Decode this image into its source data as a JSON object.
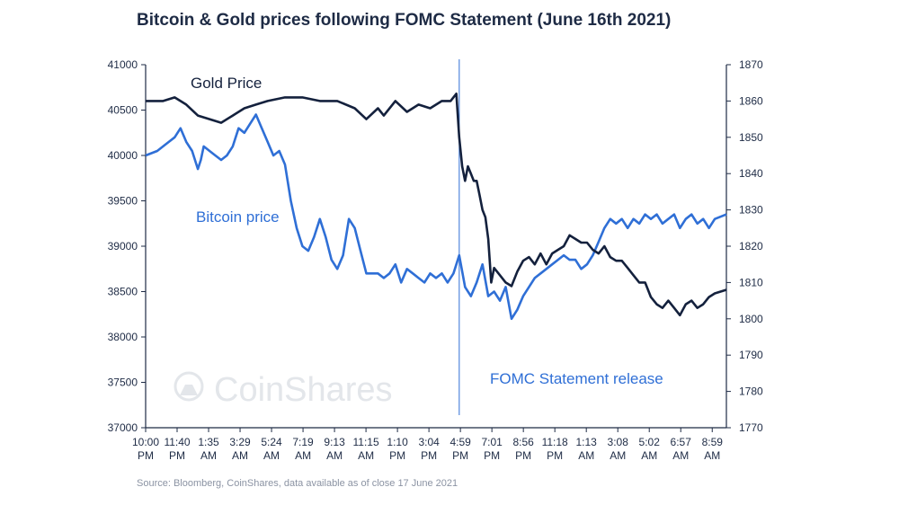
{
  "chart_data": {
    "type": "line",
    "title": "Bitcoin & Gold prices following FOMC Statement (June 16th 2021)",
    "source": "Source: Bloomberg, CoinShares, data available as of close 17 June 2021",
    "watermark": "CoinShares",
    "x_tick_labels": [
      [
        "10:00",
        "PM"
      ],
      [
        "11:40",
        "PM"
      ],
      [
        "1:35",
        "AM"
      ],
      [
        "3:29",
        "AM"
      ],
      [
        "5:24",
        "AM"
      ],
      [
        "7:19",
        "AM"
      ],
      [
        "9:13",
        "AM"
      ],
      [
        "11:15",
        "AM"
      ],
      [
        "1:10",
        "PM"
      ],
      [
        "3:04",
        "PM"
      ],
      [
        "4:59",
        "PM"
      ],
      [
        "7:01",
        "PM"
      ],
      [
        "8:56",
        "PM"
      ],
      [
        "11:18",
        "PM"
      ],
      [
        "1:13",
        "AM"
      ],
      [
        "3:08",
        "AM"
      ],
      [
        "5:02",
        "AM"
      ],
      [
        "6:57",
        "AM"
      ],
      [
        "8:59",
        "AM"
      ]
    ],
    "y_left": {
      "ticks": [
        "37000",
        "37500",
        "38000",
        "38500",
        "39000",
        "39500",
        "40000",
        "40500",
        "41000"
      ],
      "ylim": [
        37000,
        41000
      ]
    },
    "y_right": {
      "ticks": [
        "1770",
        "1780",
        "1790",
        "1800",
        "1810",
        "1820",
        "1830",
        "1840",
        "1850",
        "1860",
        "1870"
      ],
      "ylim": [
        1770,
        1870
      ]
    },
    "annotation": {
      "label": "FOMC Statement release",
      "x_index": 0.54
    },
    "colors": {
      "bitcoin": "#2f6fd6",
      "gold": "#14213d",
      "axis": "#1e2b45",
      "annotation": "#2f6fd6",
      "watermark": "#e3e6ea"
    },
    "series": [
      {
        "name": "Gold Price",
        "axis": "right",
        "points": [
          [
            0.0,
            1860
          ],
          [
            0.03,
            1860
          ],
          [
            0.05,
            1861
          ],
          [
            0.07,
            1859
          ],
          [
            0.09,
            1856
          ],
          [
            0.11,
            1855
          ],
          [
            0.13,
            1854
          ],
          [
            0.15,
            1856
          ],
          [
            0.17,
            1858
          ],
          [
            0.19,
            1859
          ],
          [
            0.21,
            1860
          ],
          [
            0.24,
            1861
          ],
          [
            0.27,
            1861
          ],
          [
            0.3,
            1860
          ],
          [
            0.33,
            1860
          ],
          [
            0.36,
            1858
          ],
          [
            0.38,
            1855
          ],
          [
            0.4,
            1858
          ],
          [
            0.41,
            1856
          ],
          [
            0.43,
            1860
          ],
          [
            0.45,
            1857
          ],
          [
            0.47,
            1859
          ],
          [
            0.49,
            1858
          ],
          [
            0.51,
            1860
          ],
          [
            0.525,
            1860
          ],
          [
            0.535,
            1862
          ],
          [
            0.54,
            1850
          ],
          [
            0.545,
            1842
          ],
          [
            0.55,
            1838
          ],
          [
            0.555,
            1842
          ],
          [
            0.56,
            1840
          ],
          [
            0.565,
            1838
          ],
          [
            0.57,
            1838
          ],
          [
            0.575,
            1834
          ],
          [
            0.58,
            1830
          ],
          [
            0.585,
            1828
          ],
          [
            0.59,
            1822
          ],
          [
            0.595,
            1810
          ],
          [
            0.6,
            1814
          ],
          [
            0.61,
            1812
          ],
          [
            0.62,
            1810
          ],
          [
            0.63,
            1809
          ],
          [
            0.64,
            1813
          ],
          [
            0.65,
            1816
          ],
          [
            0.66,
            1817
          ],
          [
            0.67,
            1815
          ],
          [
            0.68,
            1818
          ],
          [
            0.69,
            1815
          ],
          [
            0.7,
            1818
          ],
          [
            0.71,
            1819
          ],
          [
            0.72,
            1820
          ],
          [
            0.73,
            1823
          ],
          [
            0.74,
            1822
          ],
          [
            0.75,
            1821
          ],
          [
            0.76,
            1821
          ],
          [
            0.77,
            1819
          ],
          [
            0.78,
            1818
          ],
          [
            0.79,
            1820
          ],
          [
            0.8,
            1817
          ],
          [
            0.81,
            1816
          ],
          [
            0.82,
            1816
          ],
          [
            0.83,
            1814
          ],
          [
            0.84,
            1812
          ],
          [
            0.85,
            1810
          ],
          [
            0.86,
            1810
          ],
          [
            0.87,
            1806
          ],
          [
            0.88,
            1804
          ],
          [
            0.89,
            1803
          ],
          [
            0.9,
            1805
          ],
          [
            0.91,
            1803
          ],
          [
            0.92,
            1801
          ],
          [
            0.93,
            1804
          ],
          [
            0.94,
            1805
          ],
          [
            0.95,
            1803
          ],
          [
            0.96,
            1804
          ],
          [
            0.97,
            1806
          ],
          [
            0.98,
            1807
          ],
          [
            1.0,
            1808
          ]
        ]
      },
      {
        "name": "Bitcoin price",
        "axis": "left",
        "points": [
          [
            0.0,
            40000
          ],
          [
            0.02,
            40050
          ],
          [
            0.03,
            40100
          ],
          [
            0.04,
            40150
          ],
          [
            0.05,
            40200
          ],
          [
            0.06,
            40300
          ],
          [
            0.07,
            40150
          ],
          [
            0.08,
            40050
          ],
          [
            0.09,
            39850
          ],
          [
            0.095,
            39950
          ],
          [
            0.1,
            40100
          ],
          [
            0.11,
            40050
          ],
          [
            0.12,
            40000
          ],
          [
            0.13,
            39950
          ],
          [
            0.14,
            40000
          ],
          [
            0.15,
            40100
          ],
          [
            0.16,
            40300
          ],
          [
            0.17,
            40250
          ],
          [
            0.18,
            40350
          ],
          [
            0.19,
            40450
          ],
          [
            0.2,
            40300
          ],
          [
            0.21,
            40150
          ],
          [
            0.22,
            40000
          ],
          [
            0.23,
            40050
          ],
          [
            0.24,
            39900
          ],
          [
            0.25,
            39500
          ],
          [
            0.26,
            39200
          ],
          [
            0.27,
            39000
          ],
          [
            0.28,
            38950
          ],
          [
            0.29,
            39100
          ],
          [
            0.3,
            39300
          ],
          [
            0.31,
            39100
          ],
          [
            0.32,
            38850
          ],
          [
            0.33,
            38750
          ],
          [
            0.34,
            38900
          ],
          [
            0.35,
            39300
          ],
          [
            0.36,
            39200
          ],
          [
            0.37,
            38950
          ],
          [
            0.38,
            38700
          ],
          [
            0.39,
            38700
          ],
          [
            0.4,
            38700
          ],
          [
            0.41,
            38650
          ],
          [
            0.42,
            38700
          ],
          [
            0.43,
            38800
          ],
          [
            0.44,
            38600
          ],
          [
            0.45,
            38750
          ],
          [
            0.46,
            38700
          ],
          [
            0.47,
            38650
          ],
          [
            0.48,
            38600
          ],
          [
            0.49,
            38700
          ],
          [
            0.5,
            38650
          ],
          [
            0.51,
            38700
          ],
          [
            0.52,
            38600
          ],
          [
            0.53,
            38700
          ],
          [
            0.54,
            38900
          ],
          [
            0.55,
            38550
          ],
          [
            0.56,
            38450
          ],
          [
            0.57,
            38600
          ],
          [
            0.58,
            38800
          ],
          [
            0.59,
            38450
          ],
          [
            0.6,
            38500
          ],
          [
            0.61,
            38400
          ],
          [
            0.62,
            38550
          ],
          [
            0.63,
            38200
          ],
          [
            0.64,
            38300
          ],
          [
            0.65,
            38450
          ],
          [
            0.66,
            38550
          ],
          [
            0.67,
            38650
          ],
          [
            0.68,
            38700
          ],
          [
            0.69,
            38750
          ],
          [
            0.7,
            38800
          ],
          [
            0.71,
            38850
          ],
          [
            0.72,
            38900
          ],
          [
            0.73,
            38850
          ],
          [
            0.74,
            38850
          ],
          [
            0.75,
            38750
          ],
          [
            0.76,
            38800
          ],
          [
            0.77,
            38900
          ],
          [
            0.78,
            39050
          ],
          [
            0.79,
            39200
          ],
          [
            0.8,
            39300
          ],
          [
            0.81,
            39250
          ],
          [
            0.82,
            39300
          ],
          [
            0.83,
            39200
          ],
          [
            0.84,
            39300
          ],
          [
            0.85,
            39250
          ],
          [
            0.86,
            39350
          ],
          [
            0.87,
            39300
          ],
          [
            0.88,
            39350
          ],
          [
            0.89,
            39250
          ],
          [
            0.9,
            39300
          ],
          [
            0.91,
            39350
          ],
          [
            0.92,
            39200
          ],
          [
            0.93,
            39300
          ],
          [
            0.94,
            39350
          ],
          [
            0.95,
            39250
          ],
          [
            0.96,
            39300
          ],
          [
            0.97,
            39200
          ],
          [
            0.98,
            39300
          ],
          [
            1.0,
            39350
          ]
        ]
      }
    ],
    "series_labels": {
      "gold": "Gold Price",
      "bitcoin": "Bitcoin price"
    }
  }
}
